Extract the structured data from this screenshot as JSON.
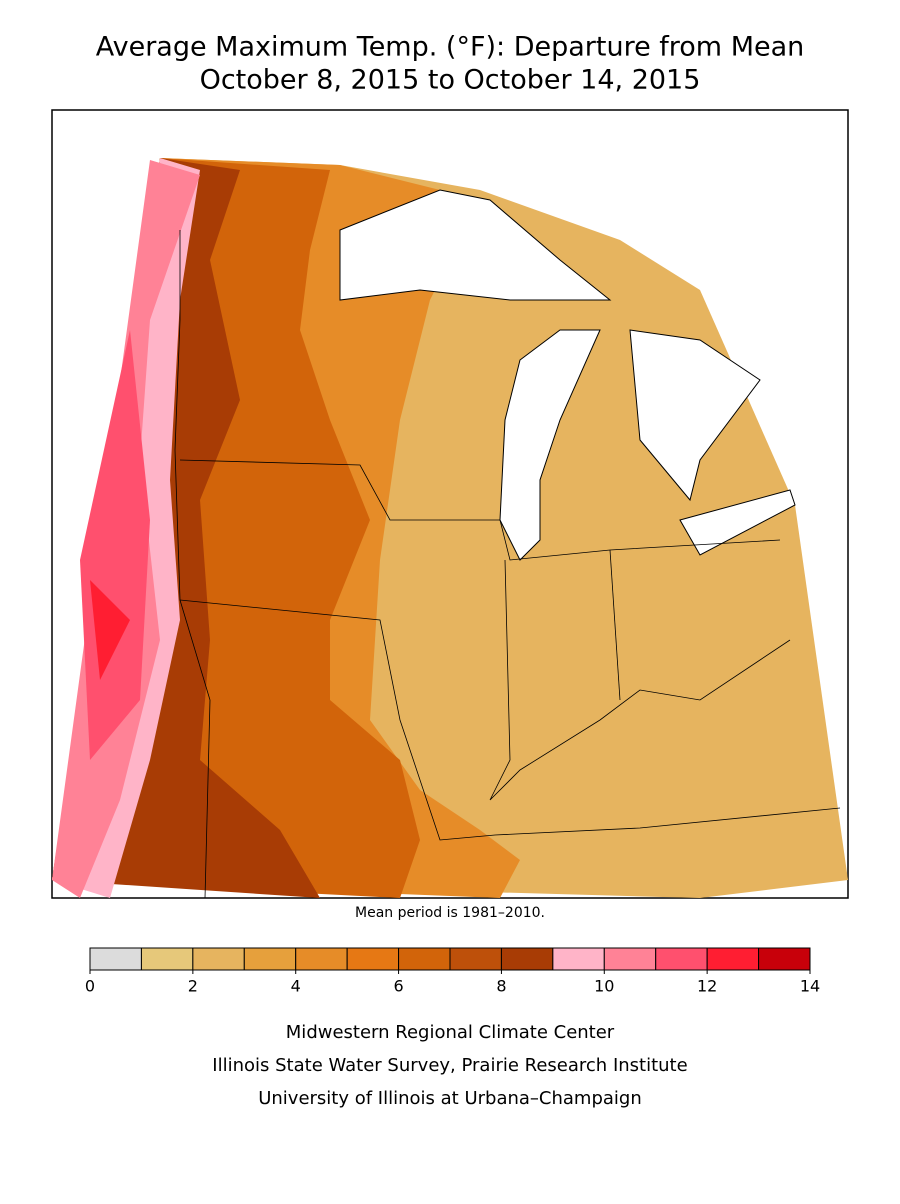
{
  "title": [
    "Average Maximum Temp. (°F): Departure from Mean",
    "October 8, 2015 to October 14, 2015"
  ],
  "note": "Mean period is 1981–2010.",
  "legend": {
    "bins": [
      0,
      1,
      2,
      3,
      4,
      5,
      6,
      7,
      8,
      9,
      10,
      11,
      12,
      13,
      14
    ],
    "colors": [
      "#dcdcdc",
      "#e6c87a",
      "#e6b45f",
      "#e6a03c",
      "#e68c28",
      "#e67814",
      "#d2640a",
      "#be500a",
      "#a83c05",
      "#ffb4c8",
      "#ff8296",
      "#ff506e",
      "#ff1e32",
      "#c8000a"
    ],
    "ticks": [
      0,
      2,
      4,
      6,
      8,
      10,
      12,
      14
    ]
  },
  "credits": [
    "Midwestern Regional Climate Center",
    "Illinois State Water Survey, Prairie Research Institute",
    "University of Illinois at Urbana–Champaign"
  ]
}
